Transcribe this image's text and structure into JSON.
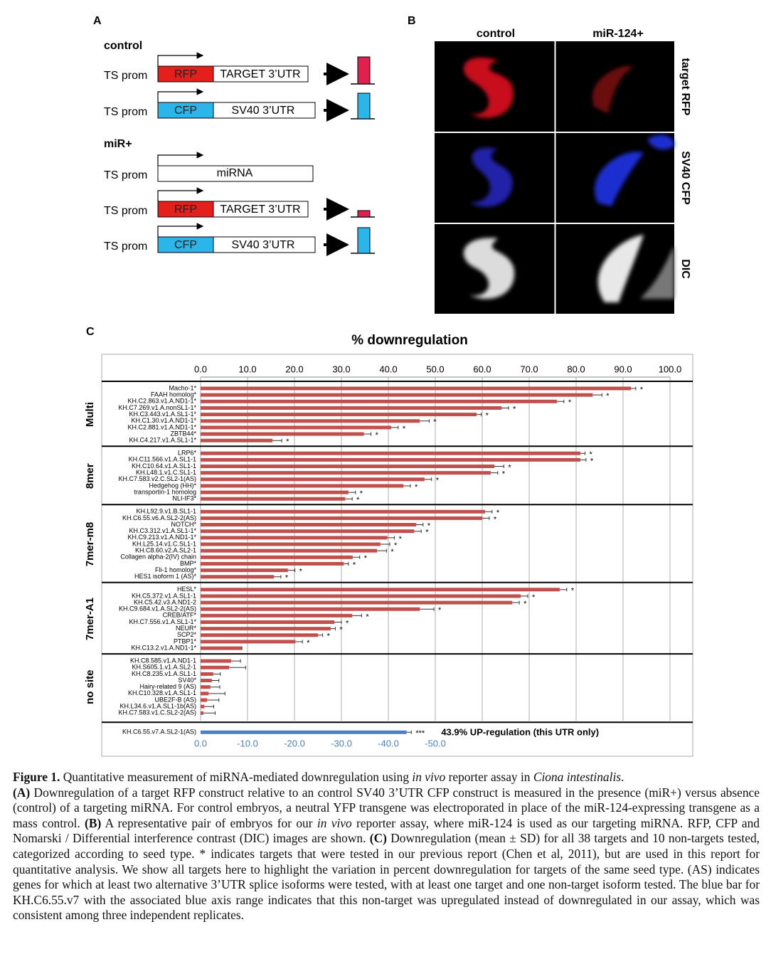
{
  "panel_a": {
    "label": "A",
    "control": "control",
    "mir": "miR+",
    "rows": [
      {
        "promoter": "TS prom",
        "gene": "RFP",
        "utr": "TARGET 3’UTR"
      },
      {
        "promoter": "TS prom",
        "gene": "CFP",
        "utr": "SV40 3’UTR"
      },
      {
        "promoter": "TS prom",
        "transcript": "miRNA"
      },
      {
        "promoter": "TS prom",
        "gene": "RFP",
        "utr": "TARGET 3’UTR"
      },
      {
        "promoter": "TS prom",
        "gene": "CFP",
        "utr": "SV40 3’UTR"
      }
    ]
  },
  "panel_b": {
    "label": "B",
    "columns": [
      "control",
      "miR-124+"
    ],
    "rows": [
      "target RFP",
      "SV40 CFP",
      "DIC"
    ]
  },
  "panel_c_label": "C",
  "chart_data": {
    "type": "bar",
    "orientation": "horizontal",
    "title": "% downregulation",
    "color": "#c0504d",
    "grid": true,
    "xlim": [
      0,
      100
    ],
    "xticks": [
      {
        "value": 0,
        "label": "0.0"
      },
      {
        "value": 10,
        "label": "10.0"
      },
      {
        "value": 20,
        "label": "20.0"
      },
      {
        "value": 30,
        "label": "30.0"
      },
      {
        "value": 40,
        "label": "40.0"
      },
      {
        "value": 50,
        "label": "50.0"
      },
      {
        "value": 60,
        "label": "60.0"
      },
      {
        "value": 70,
        "label": "70.0"
      },
      {
        "value": 80,
        "label": "80.0"
      },
      {
        "value": 90,
        "label": "90.0"
      },
      {
        "value": 100,
        "label": "100.0"
      }
    ],
    "groups": [
      {
        "name": "Multi",
        "categories": [
          "Macho-1*",
          "FAAH homolog*",
          "KH.C2.863.v1.A.ND1-1*",
          "KH.C7.269.v1.A.nonSL1-1*",
          "KH.C3.443.v1.A.SL1-1*",
          "KH.C1.30.v1.A.ND1-1*",
          "KH.C2.881.v1.A.ND1-1*",
          "ZBTB44*",
          "KH.C4.217.v1.A.SL1-1*"
        ],
        "values": [
          91.7,
          83.5,
          75.9,
          64.1,
          58.8,
          46.7,
          40.6,
          34.8,
          15.3
        ],
        "errors": [
          1,
          2,
          1.5,
          1.5,
          1,
          2,
          1.5,
          1.5,
          2
        ],
        "markers": [
          "*",
          "*",
          "*",
          "*",
          "*",
          "*",
          "*",
          "*",
          "*"
        ]
      },
      {
        "name": "8mer",
        "categories": [
          "LRP6*",
          "KH.C11.566.v1.A.SL1-1",
          "KH.C10.64.v1.A.SL1-1",
          "KH.L48.1.v1.C.SL1-1",
          "KH.C7.583.v2.C.SL2-1(AS)",
          "Hedgehog (HH)*",
          "transportin-1 homolog",
          "NLI-IF3*"
        ],
        "values": [
          80.9,
          80.9,
          62.6,
          61.8,
          47.7,
          43.2,
          31.5,
          30.8
        ],
        "errors": [
          1,
          1.2,
          2,
          1.5,
          1.5,
          1.5,
          1.5,
          1.5
        ],
        "markers": [
          "*",
          "*",
          "*",
          "*",
          "*",
          "*",
          "*",
          "*"
        ]
      },
      {
        "name": "7mer-m8",
        "categories": [
          "KH.L92.9.v1.B.SL1-1",
          "KH.C6.55.v6.A.SL2-2(AS)",
          "NOTCH*",
          "KH.C3.312.v1.A.SL1-1*",
          "KH.C9.213.v1.A.ND1-1*",
          "KH.L25.14.v1.C.SL1-1",
          "KH.C8.60.v2.A.SL2-1",
          "Collagen alpha-2(IV) chain",
          "BMP*",
          "Fli-1 homolog*",
          "HES1 isoform 1 (AS)*"
        ],
        "values": [
          60.6,
          60.0,
          45.9,
          45.5,
          39.8,
          38.3,
          37.6,
          32.4,
          30.5,
          18.6,
          15.6
        ],
        "errors": [
          1.5,
          1.5,
          1.5,
          1.5,
          1.5,
          2,
          2,
          1.5,
          1,
          1.5,
          1.5
        ],
        "markers": [
          "*",
          "*",
          "*",
          "*",
          "*",
          "*",
          "*",
          "*",
          "*",
          "*",
          "*"
        ]
      },
      {
        "name": "7mer-A1",
        "categories": [
          "HESL*",
          "KH.C5.372.v1.A.SL1-1",
          "KH.C5.42.v3.A.ND1-2",
          "KH.C9.684.v1.A.SL2-2(AS)",
          "CREB/ATF*",
          "KH.C7.556.v1.A.SL1-1*",
          "NEUR*",
          "SCP2*",
          "PTBP1*",
          "KH.C13.2.v1.A.ND1-1*"
        ],
        "values": [
          76.5,
          68.2,
          66.4,
          46.7,
          32.3,
          28.5,
          27.7,
          25.0,
          20.2,
          8.8
        ],
        "errors": [
          1.5,
          1.5,
          1.5,
          3,
          2,
          1.5,
          1,
          1,
          1.5,
          0
        ],
        "markers": [
          "*",
          "*",
          "*",
          "*",
          "*",
          "*",
          "*",
          "*",
          "*",
          null
        ]
      },
      {
        "name": "no site",
        "categories": [
          "KH.C8.585.v1.A.ND1-1",
          "KH.S605.1.v1.A.SL2-1",
          "KH.C8.235.v1.A.SL1-1",
          "SV40*",
          "Hairy-related 9 (AS)",
          "KH.C10.328.v1.A.SL1-1",
          "UBE2F-B (AS)",
          "KH.L34.6.v1.A.SL1-1b(AS)",
          "KH.C7.583.v1.C.SL2-2(AS)"
        ],
        "values": [
          6.5,
          6.1,
          2.7,
          2.4,
          2.1,
          1.7,
          1.4,
          0.8,
          0.6
        ],
        "errors": [
          2,
          3.5,
          1.5,
          1.5,
          2,
          3.5,
          2.5,
          2,
          2.5
        ],
        "markers": [
          null,
          null,
          null,
          null,
          null,
          null,
          null,
          null,
          null
        ]
      }
    ],
    "upregulated": {
      "color": "#4f81bd",
      "categories": [
        "KH.C6.55.v7.A.SL2-1(AS)"
      ],
      "values": [
        -43.9
      ],
      "errors": [
        1
      ],
      "markers": [
        "***"
      ],
      "annotation": "43.9% UP-regulation (this UTR only)",
      "x2lim": [
        0,
        -100
      ],
      "x2ticks": [
        {
          "value": 0,
          "label": "0.0"
        },
        {
          "value": -10,
          "label": "-10.0"
        },
        {
          "value": -20,
          "label": "-20.0"
        },
        {
          "value": -30,
          "label": "-30.0"
        },
        {
          "value": -40,
          "label": "-40.0"
        },
        {
          "value": -50,
          "label": "-50.0"
        }
      ]
    }
  },
  "caption": {
    "title": [
      {
        "text": "Figure 1.",
        "style": "bold"
      },
      {
        "text": " Quantitative measurement of miRNA-mediated downregulation using "
      },
      {
        "text": "in vivo",
        "style": "italic"
      },
      {
        "text": " reporter assay in "
      },
      {
        "text": "Ciona intestinalis",
        "style": "italic"
      },
      {
        "text": "."
      }
    ],
    "body": [
      {
        "text": "(A)",
        "style": "bold"
      },
      {
        "text": " Downregulation of a target RFP construct relative to an control SV40 3’UTR CFP construct is measured in the presence (miR+) versus absence (control) of a targeting miRNA. For control embryos, a neutral YFP transgene was electroporated in place of the miR-124-expressing transgene as a mass control. "
      },
      {
        "text": "(B)",
        "style": "bold"
      },
      {
        "text": " A representative pair of embryos for our "
      },
      {
        "text": "in vivo",
        "style": "italic"
      },
      {
        "text": " reporter assay, where miR-124 is used as our targeting miRNA. RFP, CFP and Nomarski / Differential interference contrast (DIC) images are shown. "
      },
      {
        "text": "(C)",
        "style": "bold"
      },
      {
        "text": " Downregulation (mean ± SD) for all 38 targets and 10 non-targets tested, categorized according to seed type. * indicates targets that were tested in our previous report (Chen et al, 2011), but are used in this report for quantitative analysis. We show all targets here to highlight the variation in percent downregulation for targets of the same seed type. (AS) indicates genes for which at least two alternative 3’UTR splice isoforms were tested, with at least one target and one non-target isoform tested. The blue bar for KH.C6.55.v7 with the associated blue axis range indicates that this non-target was upregulated instead of downregulated in our assay, which was consistent among three independent replicates."
      }
    ]
  }
}
